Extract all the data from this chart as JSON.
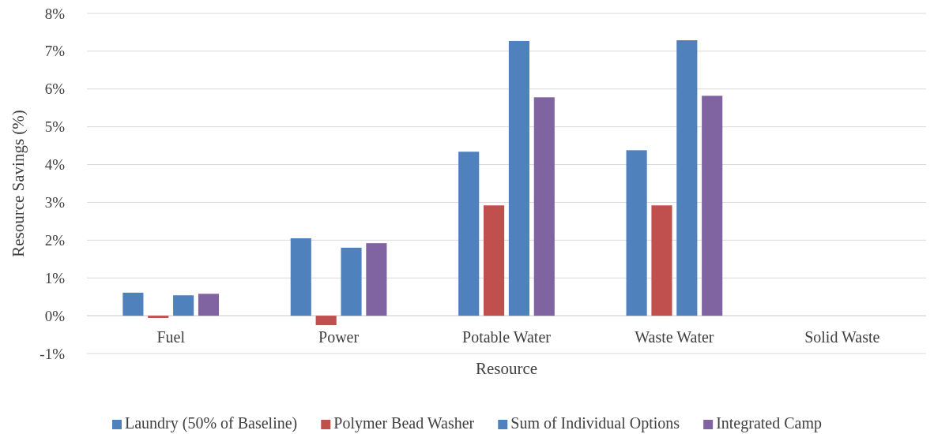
{
  "chart_data": {
    "type": "bar",
    "xlabel": "Resource",
    "ylabel": "Resource Savings (%)",
    "categories": [
      "Fuel",
      "Power",
      "Potable Water",
      "Waste Water",
      "Solid Waste"
    ],
    "series": [
      {
        "name": "Laundry (50% of Baseline)",
        "color": "#4f81bd",
        "values": [
          0.61,
          2.05,
          4.34,
          4.38,
          null
        ]
      },
      {
        "name": "Polymer Bead Washer",
        "color": "#c0504d",
        "values": [
          -0.06,
          -0.25,
          2.92,
          2.92,
          null
        ]
      },
      {
        "name": "Sum of Individual Options",
        "color": "#4f81bd",
        "values": [
          0.54,
          1.8,
          7.27,
          7.29,
          null
        ]
      },
      {
        "name": "Integrated Camp",
        "color": "#8064a2",
        "values": [
          0.58,
          1.92,
          5.78,
          5.82,
          null
        ]
      }
    ],
    "ylim": [
      -1,
      8
    ],
    "yticks": [
      {
        "value": -1,
        "label": "-1%"
      },
      {
        "value": 0,
        "label": "0%"
      },
      {
        "value": 1,
        "label": "1%"
      },
      {
        "value": 2,
        "label": "2%"
      },
      {
        "value": 3,
        "label": "3%"
      },
      {
        "value": 4,
        "label": "4%"
      },
      {
        "value": 5,
        "label": "5%"
      },
      {
        "value": 6,
        "label": "6%"
      },
      {
        "value": 7,
        "label": "7%"
      },
      {
        "value": 8,
        "label": "8%"
      }
    ],
    "grid": "y",
    "legend": "bottom"
  }
}
